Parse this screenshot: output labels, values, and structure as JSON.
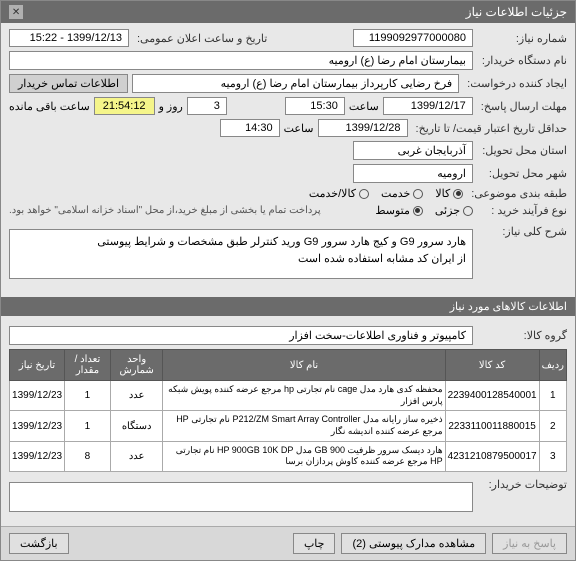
{
  "header": {
    "title": "جزئیات اطلاعات نیاز"
  },
  "fields": {
    "need_number_label": "شماره نیاز:",
    "need_number": "1199092977000080",
    "announce_label": "تاریخ و ساعت اعلان عمومی:",
    "announce_value": "1399/12/13 - 15:22",
    "buyer_org_label": "نام دستگاه خریدار:",
    "buyer_org": "بیمارستان امام رضا (ع) ارومیه",
    "creator_label": "ایجاد کننده درخواست:",
    "creator": "فرخ رضایی کارپرداز بیمارستان امام رضا (ع) ارومیه",
    "contact_tab": "اطلاعات تماس خریدار",
    "deadline_reply_label": "مهلت ارسال پاسخ:",
    "deadline_date": "1399/12/17",
    "time_label": "ساعت",
    "deadline_time": "15:30",
    "days_remaining": "3",
    "days_label": "روز و",
    "countdown": "21:54:12",
    "remaining_label": "ساعت باقی مانده",
    "min_valid_label": "حداقل تاریخ اعتبار قیمت/ تا تاریخ:",
    "min_valid_date": "1399/12/28",
    "min_valid_time": "14:30",
    "delivery_province_label": "استان محل تحویل:",
    "delivery_province": "آذربایجان غربی",
    "delivery_city_label": "شهر محل تحویل:",
    "delivery_city": "ارومیه",
    "budget_class_label": "طبقه بندی موضوعی:",
    "radio_goods": "کالا",
    "radio_service": "خدمت",
    "radio_goods_service": "کالا/خدمت",
    "process_type_label": "نوع فرآیند خرید :",
    "radio_small": "جزئی",
    "radio_medium": "متوسط",
    "payment_note": "پرداخت تمام یا بخشی از مبلغ خرید،از محل \"اسناد خزانه اسلامی\" خواهد بود.",
    "desc_label": "شرح کلی نیاز:",
    "desc_text": "هارد سرور G9 و کیج هارد سرور G9 ورید کنترلر طبق مشخصات و شرایط پیوستی\nاز ایران کد مشابه استفاده شده است",
    "items_header": "اطلاعات کالاهای مورد نیاز",
    "group_label": "گروه کالا:",
    "group_value": "کامپیوتر و فناوری اطلاعات-سخت افزار",
    "buyer_notes_label": "توضیحات خریدار:"
  },
  "table": {
    "headers": [
      "ردیف",
      "کد کالا",
      "نام کالا",
      "واحد شمارش",
      "تعداد / مقدار",
      "تاریخ نیاز"
    ],
    "rows": [
      {
        "idx": "1",
        "code": "2239400128540001",
        "name": "محفظه کدی هارد مدل cage نام تجارتی hp مرجع عرضه کننده پویش شبکه پارس افزار",
        "unit": "عدد",
        "qty": "1",
        "date": "1399/12/23"
      },
      {
        "idx": "2",
        "code": "2233110011880015",
        "name": "ذخیره ساز رایانه مدل P212/ZM Smart Array Controller نام تجارتی HP مرجع عرضه کننده اندیشه نگار",
        "unit": "دستگاه",
        "qty": "1",
        "date": "1399/12/23"
      },
      {
        "idx": "3",
        "code": "4231210879500017",
        "name": "هارد دیسک سرور ظرفیت GB 900 مدل HP 900GB 10K DP نام تجارتی HP مرجع عرضه کننده کاوش پردازان برسا",
        "unit": "عدد",
        "qty": "8",
        "date": "1399/12/23"
      }
    ]
  },
  "footer": {
    "reply": "پاسخ به نیاز",
    "attachments": "مشاهده مدارک پیوستی (2)",
    "print": "چاپ",
    "back": "بازگشت"
  }
}
